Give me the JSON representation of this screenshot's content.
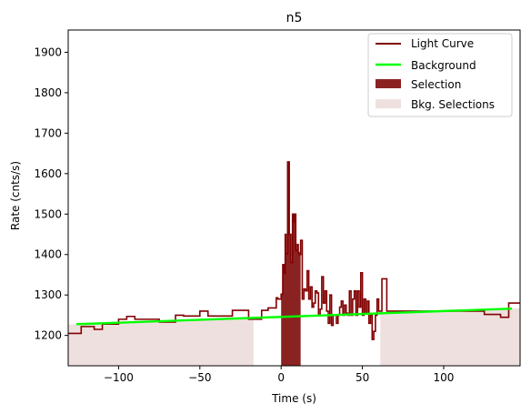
{
  "chart_data": {
    "type": "line",
    "title": "n5",
    "xlabel": "Time (s)",
    "ylabel": "Rate (cnts/s)",
    "xlim": [
      -131,
      147
    ],
    "ylim": [
      1125,
      1955
    ],
    "xticks": [
      -100,
      -50,
      0,
      50,
      100
    ],
    "yticks": [
      1200,
      1300,
      1400,
      1500,
      1600,
      1700,
      1800,
      1900
    ],
    "grid": false,
    "legend_position": "top-right",
    "colors": {
      "light_curve": "#800000",
      "background": "#00ff00",
      "selection": "#8b2222",
      "bkg_selection": "#efe0e0"
    },
    "series": [
      {
        "name": "Light Curve",
        "kind": "step",
        "x": [
          -131,
          -123,
          -120,
          -115,
          -110,
          -105,
          -100,
          -95,
          -90,
          -85,
          -80,
          -75,
          -70,
          -65,
          -60,
          -55,
          -50,
          -45,
          -40,
          -35,
          -30,
          -25,
          -20,
          -17,
          -15,
          -12,
          -10,
          -8,
          -5,
          -3,
          -2,
          -1,
          0,
          1,
          2,
          2.5,
          3,
          4,
          5,
          6,
          7,
          7.5,
          8,
          9,
          10,
          10.5,
          11,
          12,
          13,
          14,
          15,
          16,
          17,
          18,
          19,
          20,
          21,
          22,
          23,
          24,
          25,
          26,
          27,
          28,
          29,
          30,
          31,
          32,
          33,
          34,
          35,
          36,
          37,
          38,
          39,
          40,
          41,
          42,
          43,
          44,
          45,
          46,
          47,
          48,
          49,
          50,
          51,
          52,
          53,
          54,
          55,
          56,
          57,
          58,
          59,
          60,
          62,
          65,
          70,
          75,
          80,
          85,
          90,
          95,
          100,
          105,
          110,
          115,
          120,
          125,
          130,
          135,
          140,
          147
        ],
        "y": [
          1205,
          1222,
          1222,
          1215,
          1228,
          1228,
          1240,
          1247,
          1240,
          1240,
          1240,
          1233,
          1233,
          1250,
          1248,
          1248,
          1260,
          1248,
          1248,
          1248,
          1262,
          1262,
          1240,
          1240,
          1240,
          1262,
          1262,
          1268,
          1268,
          1293,
          1290,
          1290,
          1302,
          1375,
          1353,
          1450,
          1402,
          1629,
          1450,
          1380,
          1500,
          1480,
          1500,
          1410,
          1425,
          1405,
          1400,
          1435,
          1290,
          1315,
          1310,
          1360,
          1290,
          1320,
          1270,
          1280,
          1310,
          1305,
          1250,
          1265,
          1345,
          1280,
          1310,
          1260,
          1230,
          1300,
          1225,
          1250,
          1250,
          1230,
          1250,
          1270,
          1285,
          1250,
          1275,
          1255,
          1250,
          1310,
          1250,
          1290,
          1310,
          1250,
          1310,
          1270,
          1355,
          1250,
          1290,
          1255,
          1285,
          1230,
          1250,
          1190,
          1210,
          1250,
          1290,
          1260,
          1340,
          1260,
          1260,
          1260,
          1260,
          1260,
          1260,
          1260,
          1260,
          1260,
          1260,
          1260,
          1260,
          1252,
          1252,
          1245,
          1280,
          1280
        ]
      },
      {
        "name": "Background",
        "kind": "line",
        "x": [
          -131,
          147
        ],
        "y": [
          1227,
          1267
        ]
      }
    ],
    "selections": [
      {
        "name": "Selection",
        "x": [
          0,
          12
        ]
      }
    ],
    "bkg_selections": [
      {
        "name": "Bkg. Selections",
        "x": [
          -131,
          -17
        ]
      },
      {
        "name": "Bkg. Selections",
        "x": [
          61,
          147
        ]
      }
    ],
    "legend": [
      "Light Curve",
      "Background",
      "Selection",
      "Bkg. Selections"
    ]
  }
}
